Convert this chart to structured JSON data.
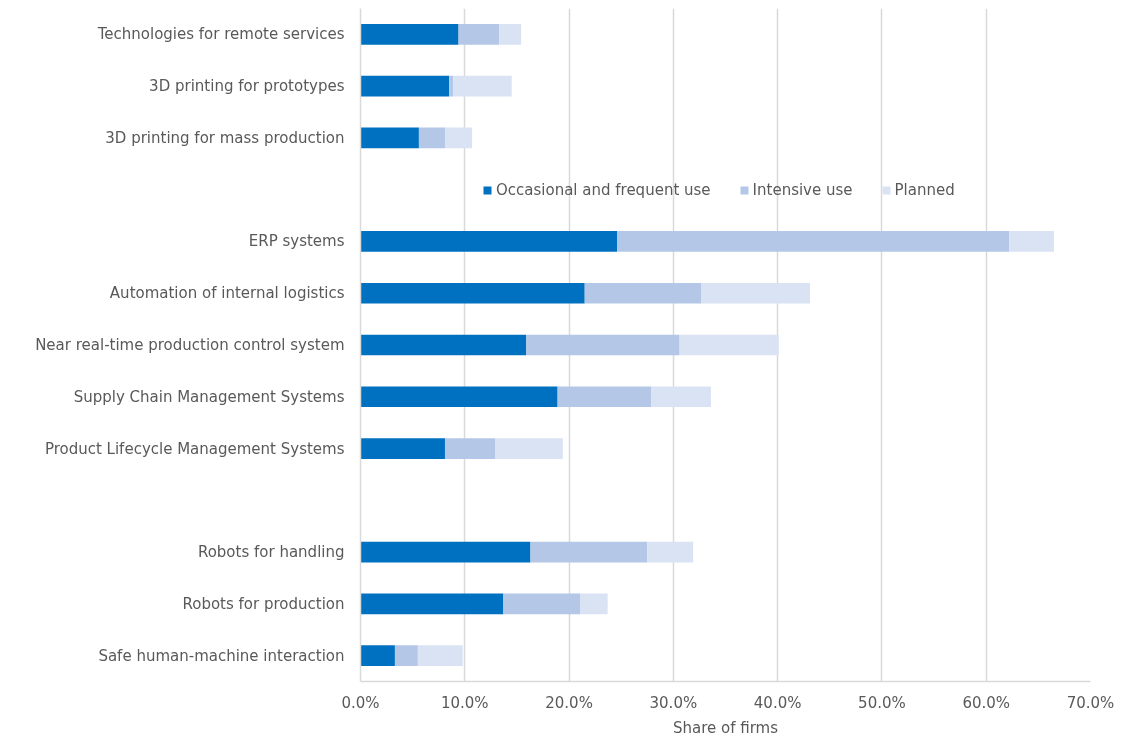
{
  "chart_data": {
    "type": "bar",
    "orientation": "horizontal",
    "stacked": true,
    "categories": [
      "Technologies for remote services",
      "3D printing for prototypes",
      "3D printing for mass production",
      null,
      "ERP systems",
      "Automation of internal logistics",
      "Near real-time production control system",
      "Supply Chain Management Systems",
      "Product Lifecycle Management Systems",
      null,
      "Robots for handling",
      "Robots for production",
      "Safe human-machine interaction"
    ],
    "series": [
      {
        "name": "Occasional and frequent use",
        "color": "#0070c0",
        "values": [
          9.4,
          8.5,
          5.6,
          null,
          24.6,
          21.5,
          15.9,
          18.9,
          8.1,
          null,
          16.3,
          13.7,
          3.3
        ]
      },
      {
        "name": "Intensive use",
        "color": "#b4c7e7",
        "values": [
          3.9,
          0.4,
          2.5,
          null,
          37.6,
          11.2,
          14.7,
          9.0,
          4.8,
          null,
          11.2,
          7.4,
          2.2
        ]
      },
      {
        "name": "Planned",
        "color": "#dae3f3",
        "values": [
          2.1,
          5.6,
          2.6,
          null,
          4.3,
          10.4,
          9.5,
          5.7,
          6.5,
          null,
          4.4,
          2.6,
          4.3
        ]
      }
    ],
    "xlabel": "Share of firms",
    "xlim": [
      0,
      70
    ],
    "xticks": [
      {
        "value": 0,
        "label": "0.0%"
      },
      {
        "value": 10,
        "label": "10.0%"
      },
      {
        "value": 20,
        "label": "20.0%"
      },
      {
        "value": 30,
        "label": "30.0%"
      },
      {
        "value": 40,
        "label": "40.0%"
      },
      {
        "value": 50,
        "label": "50.0%"
      },
      {
        "value": 60,
        "label": "60.0%"
      },
      {
        "value": 70,
        "label": "70.0%"
      }
    ],
    "grid": "x",
    "legend": "top"
  }
}
